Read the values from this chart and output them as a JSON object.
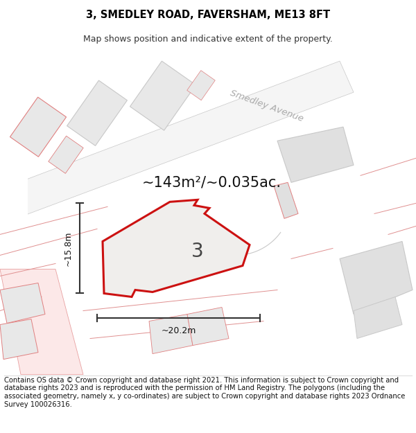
{
  "title": "3, SMEDLEY ROAD, FAVERSHAM, ME13 8FT",
  "subtitle": "Map shows position and indicative extent of the property.",
  "area_text": "~143m²/~0.035ac.",
  "property_number": "3",
  "dim_width": "~20.2m",
  "dim_height": "~15.8m",
  "footer": "Contains OS data © Crown copyright and database right 2021. This information is subject to Crown copyright and database rights 2023 and is reproduced with the permission of HM Land Registry. The polygons (including the associated geometry, namely x, y co-ordinates) are subject to Crown copyright and database rights 2023 Ordnance Survey 100026316.",
  "bg_color": "#ffffff",
  "map_bg": "#ffffff",
  "road_label": "Smedley Avenue",
  "title_fontsize": 10.5,
  "subtitle_fontsize": 9,
  "footer_fontsize": 7.2,
  "area_fontsize": 15
}
